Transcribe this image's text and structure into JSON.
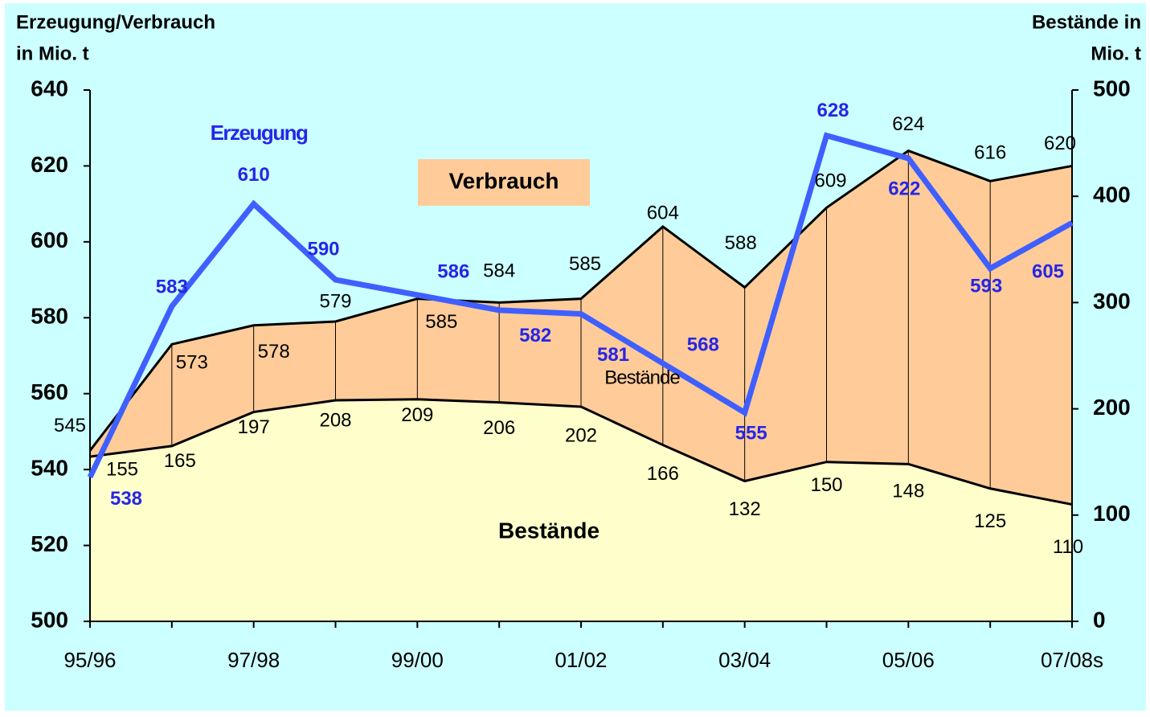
{
  "chart_data": {
    "type": "line-area",
    "y_label": [
      "Erzeugung/Verbrauch",
      "in Mio. t"
    ],
    "y2_label": [
      "Bestände in",
      "Mio. t"
    ],
    "categories": [
      "95/96",
      null,
      "97/98",
      null,
      "99/00",
      null,
      "01/02",
      null,
      "03/04",
      null,
      "05/06",
      null,
      "07/08s"
    ],
    "series": [
      {
        "name": "Erzeugung",
        "color": "#3f5fff",
        "label_color": "#2626e6",
        "values": [
          538,
          583,
          610,
          590,
          586,
          582,
          581,
          568,
          555,
          628,
          622,
          593,
          605
        ]
      },
      {
        "name": "Verbrauch",
        "color": "#000000",
        "fill": "#ffcc99",
        "values": [
          545,
          573,
          578,
          579,
          585,
          584,
          585,
          604,
          588,
          609,
          624,
          616,
          620
        ]
      },
      {
        "name": "Bestände",
        "axis": "y2",
        "color": "#000000",
        "fill": "#ffffcc",
        "values": [
          155,
          165,
          197,
          208,
          209,
          206,
          202,
          166,
          132,
          150,
          148,
          125,
          110
        ]
      }
    ],
    "annotations": [
      "Erzeugung",
      "Verbrauch",
      "Bestände",
      "Bestände"
    ],
    "ylim": [
      500,
      640
    ],
    "yticks": [
      500,
      520,
      540,
      560,
      580,
      600,
      620,
      640
    ],
    "y2lim": [
      0,
      500
    ],
    "y2ticks": [
      0,
      100,
      200,
      300,
      400,
      500
    ]
  }
}
